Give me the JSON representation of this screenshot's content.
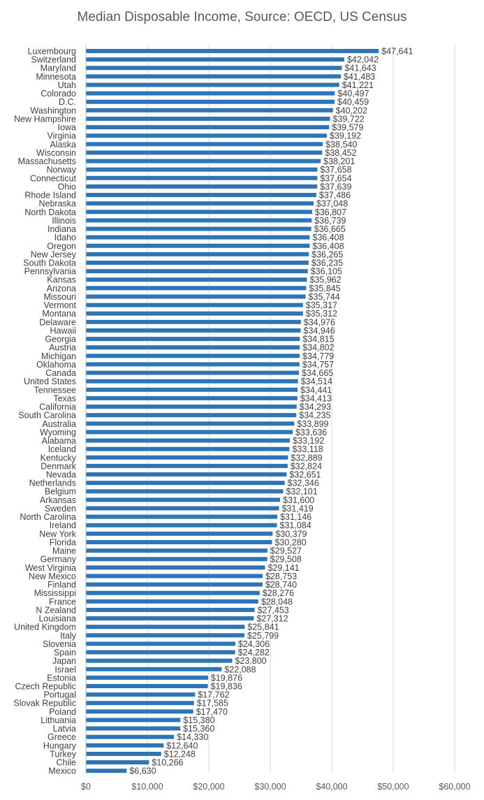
{
  "chart_data": {
    "type": "bar",
    "orientation": "horizontal",
    "title": "Median Disposable Income, Source: OECD, US Census",
    "xlabel": "",
    "ylabel": "",
    "xlim": [
      0,
      60000
    ],
    "x_ticks": [
      0,
      10000,
      20000,
      30000,
      40000,
      50000,
      60000
    ],
    "x_tick_labels": [
      "$0",
      "$10,000",
      "$20,000",
      "$30,000",
      "$40,000",
      "$50,000",
      "$60,000"
    ],
    "grid": "vertical",
    "legend": "none",
    "bar_color": "#2e75b6",
    "categories": [
      "Luxembourg",
      "Switzerland",
      "Maryland",
      "Minnesota",
      "Utah",
      "Colorado",
      "D.C.",
      "Washington",
      "New Hampshire",
      "Iowa",
      "Virginia",
      "Alaska",
      "Wisconsin",
      "Massachusetts",
      "Norway",
      "Connecticut",
      "Ohio",
      "Rhode Island",
      "Nebraska",
      "North Dakota",
      "Illinois",
      "Indiana",
      "Idaho",
      "Oregon",
      "New Jersey",
      "South Dakota",
      "Pennsylvania",
      "Kansas",
      "Arizona",
      "Missouri",
      "Vermont",
      "Montana",
      "Delaware",
      "Hawaii",
      "Georgia",
      "Austria",
      "Michigan",
      "Oklahoma",
      "Canada",
      "United States",
      "Tennessee",
      "Texas",
      "California",
      "South Carolina",
      "Australia",
      "Wyoming",
      "Alabama",
      "Iceland",
      "Kentucky",
      "Denmark",
      "Nevada",
      "Netherlands",
      "Belgium",
      "Arkansas",
      "Sweden",
      "North Carolina",
      "Ireland",
      "New York",
      "Florida",
      "Maine",
      "Germany",
      "West Virginia",
      "New Mexico",
      "Finland",
      "Mississippi",
      "France",
      "N Zealand",
      "Louisiana",
      "United Kingdom",
      "Italy",
      "Slovenia",
      "Spain",
      "Japan",
      "Israel",
      "Estonia",
      "Czech Republic",
      "Portugal",
      "Slovak Republic",
      "Poland",
      "Lithuania",
      "Latvia",
      "Greece",
      "Hungary",
      "Turkey",
      "Chile",
      "Mexico"
    ],
    "values": [
      47641,
      42042,
      41643,
      41483,
      41221,
      40497,
      40459,
      40202,
      39722,
      39579,
      39192,
      38540,
      38452,
      38201,
      37658,
      37654,
      37639,
      37486,
      37048,
      36807,
      36739,
      36665,
      36408,
      36408,
      36265,
      36235,
      36105,
      35962,
      35845,
      35744,
      35317,
      35312,
      34976,
      34946,
      34815,
      34802,
      34779,
      34757,
      34665,
      34514,
      34441,
      34413,
      34293,
      34235,
      33899,
      33636,
      33192,
      33118,
      32889,
      32824,
      32651,
      32346,
      32101,
      31600,
      31419,
      31146,
      31084,
      30379,
      30280,
      29527,
      29508,
      29141,
      28753,
      28740,
      28276,
      28048,
      27453,
      27312,
      25841,
      25799,
      24306,
      24282,
      23800,
      22088,
      19876,
      19836,
      17762,
      17585,
      17470,
      15380,
      15360,
      14330,
      12640,
      12248,
      10266,
      6630
    ],
    "value_labels": [
      "$47,641",
      "$42,042",
      "$41,643",
      "$41,483",
      "$41,221",
      "$40,497",
      "$40,459",
      "$40,202",
      "$39,722",
      "$39,579",
      "$39,192",
      "$38,540",
      "$38,452",
      "$38,201",
      "$37,658",
      "$37,654",
      "$37,639",
      "$37,486",
      "$37,048",
      "$36,807",
      "$36,739",
      "$36,665",
      "$36,408",
      "$36,408",
      "$36,265",
      "$36,235",
      "$36,105",
      "$35,962",
      "$35,845",
      "$35,744",
      "$35,317",
      "$35,312",
      "$34,976",
      "$34,946",
      "$34,815",
      "$34,802",
      "$34,779",
      "$34,757",
      "$34,665",
      "$34,514",
      "$34,441",
      "$34,413",
      "$34,293",
      "$34,235",
      "$33,899",
      "$33,636",
      "$33,192",
      "$33,118",
      "$32,889",
      "$32,824",
      "$32,651",
      "$32,346",
      "$32,101",
      "$31,600",
      "$31,419",
      "$31,146",
      "$31,084",
      "$30,379",
      "$30,280",
      "$29,527",
      "$29,508",
      "$29,141",
      "$28,753",
      "$28,740",
      "$28,276",
      "$28,048",
      "$27,453",
      "$27,312",
      "$25,841",
      "$25,799",
      "$24,306",
      "$24,282",
      "$23,800",
      "$22,088",
      "$19,876",
      "$19,836",
      "$17,762",
      "$17,585",
      "$17,470",
      "$15,380",
      "$15,360",
      "$14,330",
      "$12,640",
      "$12,248",
      "$10,266",
      "$6,630"
    ]
  }
}
